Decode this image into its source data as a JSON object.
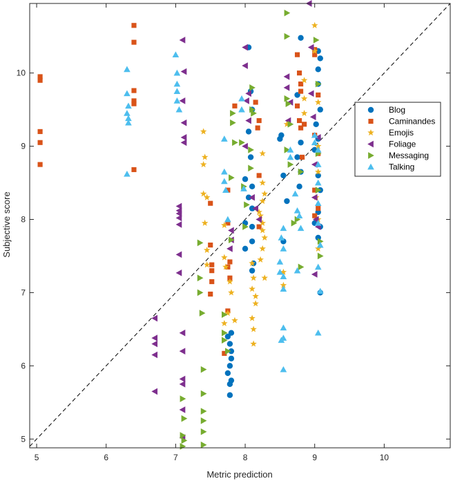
{
  "chart_data": {
    "type": "scatter",
    "title": "",
    "xlabel": "Metric prediction",
    "ylabel": "Subjective score",
    "xlim": [
      4.9,
      10.95
    ],
    "ylim": [
      4.88,
      10.95
    ],
    "xticks": [
      5,
      6,
      7,
      8,
      9,
      10
    ],
    "yticks": [
      5,
      6,
      7,
      8,
      9,
      10
    ],
    "diagonal": {
      "from": [
        4.9,
        4.9
      ],
      "to": [
        10.95,
        10.95
      ],
      "style": "dashed"
    },
    "legend_position": "right",
    "series": [
      {
        "name": "Blog",
        "marker": "circle",
        "color": "#0072BD",
        "points": [
          [
            8.05,
            10.35
          ],
          [
            8.08,
            9.75
          ],
          [
            8.1,
            9.5
          ],
          [
            8.05,
            9.2
          ],
          [
            8.08,
            8.85
          ],
          [
            8.0,
            8.55
          ],
          [
            8.1,
            8.45
          ],
          [
            8.05,
            8.3
          ],
          [
            8.1,
            8.15
          ],
          [
            8.0,
            7.95
          ],
          [
            8.1,
            7.9
          ],
          [
            8.1,
            7.7
          ],
          [
            8.12,
            7.4
          ],
          [
            8.1,
            7.3
          ],
          [
            8.0,
            7.6
          ],
          [
            7.8,
            6.45
          ],
          [
            7.75,
            6.4
          ],
          [
            7.78,
            6.3
          ],
          [
            7.8,
            6.2
          ],
          [
            7.8,
            6.1
          ],
          [
            7.78,
            6.0
          ],
          [
            7.75,
            5.9
          ],
          [
            7.8,
            5.8
          ],
          [
            7.78,
            5.75
          ],
          [
            7.78,
            5.6
          ],
          [
            8.5,
            9.1
          ],
          [
            8.55,
            8.6
          ],
          [
            8.6,
            8.25
          ],
          [
            8.55,
            7.7
          ],
          [
            8.52,
            9.15
          ],
          [
            8.8,
            10.48
          ],
          [
            8.75,
            9.7
          ],
          [
            8.8,
            9.05
          ],
          [
            8.75,
            8.85
          ],
          [
            8.78,
            8.45
          ],
          [
            8.8,
            8.65
          ],
          [
            9.05,
            10.3
          ],
          [
            9.08,
            10.2
          ],
          [
            9.05,
            10.05
          ],
          [
            9.05,
            9.85
          ],
          [
            9.08,
            9.5
          ],
          [
            9.02,
            9.3
          ],
          [
            9.05,
            9.1
          ],
          [
            9.0,
            8.95
          ],
          [
            9.05,
            8.6
          ],
          [
            9.08,
            8.4
          ],
          [
            9.05,
            8.1
          ],
          [
            9.0,
            7.95
          ],
          [
            9.08,
            7.9
          ],
          [
            9.05,
            7.75
          ],
          [
            9.08,
            7.0
          ]
        ]
      },
      {
        "name": "Caminandes",
        "marker": "square",
        "color": "#D95319",
        "points": [
          [
            5.05,
            9.95
          ],
          [
            5.05,
            9.9
          ],
          [
            5.05,
            9.2
          ],
          [
            5.05,
            9.05
          ],
          [
            5.05,
            8.75
          ],
          [
            6.4,
            10.65
          ],
          [
            6.4,
            10.42
          ],
          [
            6.4,
            9.76
          ],
          [
            6.4,
            9.62
          ],
          [
            6.4,
            9.58
          ],
          [
            6.4,
            8.68
          ],
          [
            7.5,
            8.22
          ],
          [
            7.5,
            7.65
          ],
          [
            7.52,
            7.38
          ],
          [
            7.52,
            7.3
          ],
          [
            7.52,
            7.15
          ],
          [
            7.5,
            6.98
          ],
          [
            7.75,
            8.4
          ],
          [
            7.75,
            7.95
          ],
          [
            7.78,
            7.42
          ],
          [
            7.75,
            7.35
          ],
          [
            7.78,
            7.2
          ],
          [
            7.75,
            6.75
          ],
          [
            7.7,
            6.17
          ],
          [
            7.85,
            9.55
          ],
          [
            8.15,
            9.6
          ],
          [
            8.2,
            9.35
          ],
          [
            8.18,
            9.25
          ],
          [
            8.2,
            8.6
          ],
          [
            8.2,
            7.9
          ],
          [
            8.75,
            10.25
          ],
          [
            8.78,
            10.0
          ],
          [
            8.8,
            9.85
          ],
          [
            8.75,
            9.55
          ],
          [
            8.78,
            9.35
          ],
          [
            8.8,
            9.25
          ],
          [
            8.82,
            8.85
          ],
          [
            8.8,
            9.75
          ],
          [
            8.85,
            9.3
          ],
          [
            9.0,
            10.32
          ],
          [
            9.0,
            10.25
          ],
          [
            9.05,
            9.7
          ],
          [
            9.0,
            9.15
          ],
          [
            9.05,
            8.9
          ],
          [
            9.0,
            8.4
          ],
          [
            9.05,
            8.15
          ],
          [
            9.0,
            8.05
          ]
        ]
      },
      {
        "name": "Emojis",
        "marker": "star",
        "color": "#EDB120",
        "points": [
          [
            7.4,
            9.2
          ],
          [
            7.42,
            8.85
          ],
          [
            7.4,
            8.75
          ],
          [
            7.4,
            8.35
          ],
          [
            7.45,
            8.3
          ],
          [
            7.42,
            7.95
          ],
          [
            7.45,
            7.58
          ],
          [
            7.45,
            7.38
          ],
          [
            7.7,
            7.92
          ],
          [
            7.7,
            7.48
          ],
          [
            7.72,
            7.35
          ],
          [
            7.78,
            7.15
          ],
          [
            7.8,
            7.0
          ],
          [
            7.75,
            6.72
          ],
          [
            7.7,
            6.58
          ],
          [
            7.85,
            6.62
          ],
          [
            8.1,
            7.4
          ],
          [
            8.12,
            7.2
          ],
          [
            8.1,
            7.05
          ],
          [
            8.15,
            6.95
          ],
          [
            8.15,
            6.85
          ],
          [
            8.1,
            6.65
          ],
          [
            8.12,
            6.5
          ],
          [
            8.12,
            6.3
          ],
          [
            8.2,
            8.1
          ],
          [
            8.22,
            8.05
          ],
          [
            8.25,
            7.95
          ],
          [
            8.25,
            7.85
          ],
          [
            8.28,
            7.75
          ],
          [
            8.25,
            7.6
          ],
          [
            8.22,
            7.45
          ],
          [
            8.28,
            7.2
          ],
          [
            8.25,
            8.9
          ],
          [
            8.25,
            8.5
          ],
          [
            8.28,
            8.35
          ],
          [
            8.25,
            8.25
          ],
          [
            8.55,
            7.28
          ],
          [
            8.55,
            7.1
          ],
          [
            8.6,
            9.3
          ],
          [
            8.85,
            9.9
          ],
          [
            8.85,
            9.65
          ],
          [
            8.85,
            9.45
          ],
          [
            9.0,
            10.65
          ],
          [
            9.0,
            10.3
          ],
          [
            9.05,
            9.6
          ],
          [
            9.05,
            9.0
          ],
          [
            9.05,
            8.65
          ],
          [
            9.02,
            8.3
          ],
          [
            9.05,
            8.0
          ],
          [
            9.05,
            7.6
          ]
        ]
      },
      {
        "name": "Foliage",
        "marker": "triangle-left",
        "color": "#7E2F8E",
        "points": [
          [
            6.7,
            6.65
          ],
          [
            6.7,
            6.38
          ],
          [
            6.7,
            6.3
          ],
          [
            6.7,
            6.15
          ],
          [
            6.7,
            5.65
          ],
          [
            7.1,
            10.45
          ],
          [
            7.12,
            10.02
          ],
          [
            7.1,
            9.62
          ],
          [
            7.12,
            9.32
          ],
          [
            7.12,
            9.12
          ],
          [
            7.12,
            9.05
          ],
          [
            7.05,
            8.18
          ],
          [
            7.05,
            8.12
          ],
          [
            7.05,
            8.08
          ],
          [
            7.05,
            8.02
          ],
          [
            7.05,
            7.93
          ],
          [
            7.05,
            7.52
          ],
          [
            7.05,
            7.27
          ],
          [
            7.1,
            6.45
          ],
          [
            7.1,
            6.2
          ],
          [
            7.1,
            5.82
          ],
          [
            7.1,
            5.75
          ],
          [
            7.1,
            5.4
          ],
          [
            7.1,
            5.02
          ],
          [
            7.8,
            7.85
          ],
          [
            7.8,
            7.72
          ],
          [
            7.78,
            7.6
          ],
          [
            8.0,
            10.35
          ],
          [
            8.0,
            10.1
          ],
          [
            8.05,
            9.72
          ],
          [
            8.02,
            9.62
          ],
          [
            8.05,
            9.35
          ],
          [
            8.0,
            9.0
          ],
          [
            8.1,
            8.3
          ],
          [
            8.15,
            8.15
          ],
          [
            8.2,
            8.0
          ],
          [
            8.6,
            9.95
          ],
          [
            8.6,
            9.8
          ],
          [
            8.65,
            9.6
          ],
          [
            8.62,
            9.35
          ],
          [
            8.92,
            10.95
          ],
          [
            8.95,
            10.35
          ],
          [
            8.95,
            9.72
          ],
          [
            8.98,
            9.4
          ],
          [
            9.0,
            8.75
          ],
          [
            9.0,
            8.3
          ],
          [
            9.02,
            8.0
          ],
          [
            9.0,
            7.25
          ],
          [
            9.05,
            9.12
          ],
          [
            9.05,
            7.9
          ]
        ]
      },
      {
        "name": "Messaging",
        "marker": "triangle-right",
        "color": "#77AC30",
        "points": [
          [
            7.35,
            7.68
          ],
          [
            7.35,
            7.2
          ],
          [
            7.35,
            7.0
          ],
          [
            7.38,
            6.72
          ],
          [
            7.1,
            5.55
          ],
          [
            7.12,
            5.28
          ],
          [
            7.1,
            5.05
          ],
          [
            7.12,
            4.98
          ],
          [
            7.1,
            4.9
          ],
          [
            7.4,
            5.95
          ],
          [
            7.4,
            5.62
          ],
          [
            7.4,
            5.38
          ],
          [
            7.4,
            5.25
          ],
          [
            7.4,
            5.1
          ],
          [
            7.4,
            4.92
          ],
          [
            7.8,
            8.57
          ],
          [
            7.8,
            7.72
          ],
          [
            7.7,
            6.7
          ],
          [
            7.7,
            6.45
          ],
          [
            7.7,
            6.35
          ],
          [
            7.75,
            6.2
          ],
          [
            7.82,
            9.45
          ],
          [
            7.82,
            9.32
          ],
          [
            7.85,
            9.05
          ],
          [
            7.95,
            9.05
          ],
          [
            7.98,
            8.45
          ],
          [
            8.02,
            8.2
          ],
          [
            8.0,
            7.9
          ],
          [
            8.1,
            9.5
          ],
          [
            8.12,
            9.45
          ],
          [
            8.08,
            8.95
          ],
          [
            8.08,
            8.7
          ],
          [
            8.1,
            9.8
          ],
          [
            8.6,
            10.82
          ],
          [
            8.6,
            10.5
          ],
          [
            8.6,
            9.65
          ],
          [
            8.62,
            9.58
          ],
          [
            8.65,
            9.3
          ],
          [
            8.6,
            8.95
          ],
          [
            8.65,
            8.75
          ],
          [
            8.7,
            7.95
          ],
          [
            8.75,
            8.0
          ],
          [
            8.8,
            8.65
          ],
          [
            8.8,
            7.35
          ],
          [
            9.02,
            10.45
          ],
          [
            9.05,
            9.85
          ],
          [
            9.05,
            8.9
          ],
          [
            9.05,
            8.4
          ],
          [
            9.08,
            7.7
          ],
          [
            9.08,
            7.5
          ]
        ]
      },
      {
        "name": "Talking",
        "marker": "triangle-up",
        "color": "#4DBEEE",
        "points": [
          [
            6.3,
            10.05
          ],
          [
            6.3,
            9.72
          ],
          [
            6.32,
            9.55
          ],
          [
            6.3,
            9.45
          ],
          [
            6.32,
            9.38
          ],
          [
            6.32,
            9.32
          ],
          [
            6.3,
            8.62
          ],
          [
            7.0,
            10.25
          ],
          [
            7.02,
            10.0
          ],
          [
            7.02,
            9.85
          ],
          [
            7.02,
            9.75
          ],
          [
            7.02,
            9.62
          ],
          [
            7.05,
            9.5
          ],
          [
            7.7,
            9.1
          ],
          [
            7.7,
            8.65
          ],
          [
            7.7,
            8.52
          ],
          [
            7.72,
            8.4
          ],
          [
            7.75,
            8.0
          ],
          [
            7.95,
            9.65
          ],
          [
            7.95,
            9.5
          ],
          [
            7.98,
            8.42
          ],
          [
            8.55,
            7.88
          ],
          [
            8.52,
            7.75
          ],
          [
            8.55,
            7.6
          ],
          [
            8.5,
            7.42
          ],
          [
            8.5,
            7.28
          ],
          [
            8.55,
            7.22
          ],
          [
            8.55,
            7.05
          ],
          [
            8.55,
            6.52
          ],
          [
            8.55,
            6.38
          ],
          [
            8.52,
            6.35
          ],
          [
            8.55,
            5.95
          ],
          [
            8.65,
            8.95
          ],
          [
            8.65,
            8.85
          ],
          [
            8.72,
            8.35
          ],
          [
            8.75,
            8.12
          ],
          [
            8.78,
            8.05
          ],
          [
            8.8,
            7.88
          ],
          [
            8.75,
            7.3
          ],
          [
            9.0,
            9.15
          ],
          [
            9.0,
            9.05
          ],
          [
            9.05,
            8.95
          ],
          [
            9.05,
            8.75
          ],
          [
            9.05,
            8.5
          ],
          [
            9.05,
            8.22
          ],
          [
            9.05,
            7.95
          ],
          [
            9.08,
            7.65
          ],
          [
            9.05,
            7.35
          ],
          [
            9.08,
            7.02
          ],
          [
            9.05,
            6.45
          ]
        ]
      }
    ]
  }
}
